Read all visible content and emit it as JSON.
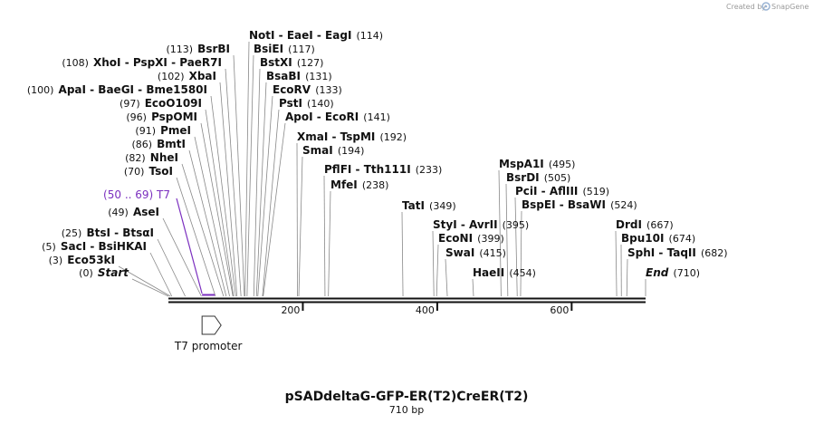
{
  "credit": {
    "created_by": "Created by",
    "brand": "SnapGene",
    "logo_icon": "snapgene-logo-icon",
    "logo_color": "#9ab4d4"
  },
  "map": {
    "title": "pSADdeltaG-GFP-ER(T2)CreER(T2)",
    "length_label": "710 bp",
    "length_bp": 710,
    "ticks": [
      {
        "bp": 200,
        "label": "200"
      },
      {
        "bp": 400,
        "label": "400"
      },
      {
        "bp": 600,
        "label": "600"
      }
    ],
    "feature_color": "#7b2fbf",
    "features": [
      {
        "label": "(50 .. 69)  T7",
        "start": 50,
        "end": 69
      }
    ],
    "annotation": {
      "label": "T7 promoter",
      "start": 50,
      "end": 69
    }
  },
  "sites": [
    {
      "pos": 0,
      "pos_label": "(0)",
      "name": "Start",
      "italic": true
    },
    {
      "pos": 3,
      "pos_label": "(3)",
      "name": "Eco53kI"
    },
    {
      "pos": 5,
      "pos_label": "(5)",
      "name": "SacI  - BsiHKAI"
    },
    {
      "pos": 25,
      "pos_label": "(25)",
      "name": "BtsI  - BtsαI"
    },
    {
      "pos": 49,
      "pos_label": "(49)",
      "name": "AseI"
    },
    {
      "pos": 70,
      "pos_label": "(70)",
      "name": "TsoI"
    },
    {
      "pos": 82,
      "pos_label": "(82)",
      "name": "NheI"
    },
    {
      "pos": 86,
      "pos_label": "(86)",
      "name": "BmtI"
    },
    {
      "pos": 91,
      "pos_label": "(91)",
      "name": "PmeI"
    },
    {
      "pos": 96,
      "pos_label": "(96)",
      "name": "PspOMI"
    },
    {
      "pos": 97,
      "pos_label": "(97)",
      "name": "EcoO109I"
    },
    {
      "pos": 100,
      "pos_label": "(100)",
      "name": "ApaI  - BaeGI  - Bme1580I"
    },
    {
      "pos": 102,
      "pos_label": "(102)",
      "name": "XbaI"
    },
    {
      "pos": 108,
      "pos_label": "(108)",
      "name": "XhoI  - PspXI  - PaeR7I"
    },
    {
      "pos": 113,
      "pos_label": "(113)",
      "name": "BsrBI"
    },
    {
      "pos": 114,
      "pos_label": "(114)",
      "name": "NotI  - EaeI  - EagI"
    },
    {
      "pos": 117,
      "pos_label": "(117)",
      "name": "BsiEI"
    },
    {
      "pos": 127,
      "pos_label": "(127)",
      "name": "BstXI"
    },
    {
      "pos": 131,
      "pos_label": "(131)",
      "name": "BsaBI"
    },
    {
      "pos": 133,
      "pos_label": "(133)",
      "name": "EcoRV"
    },
    {
      "pos": 140,
      "pos_label": "(140)",
      "name": "PstI"
    },
    {
      "pos": 141,
      "pos_label": "(141)",
      "name": "ApoI  - EcoRI"
    },
    {
      "pos": 192,
      "pos_label": "(192)",
      "name": "XmaI  - TspMI"
    },
    {
      "pos": 194,
      "pos_label": "(194)",
      "name": "SmaI"
    },
    {
      "pos": 233,
      "pos_label": "(233)",
      "name": "PflFI  - Tth111I"
    },
    {
      "pos": 238,
      "pos_label": "(238)",
      "name": "MfeI"
    },
    {
      "pos": 349,
      "pos_label": "(349)",
      "name": "TatI"
    },
    {
      "pos": 395,
      "pos_label": "(395)",
      "name": "StyI  - AvrII"
    },
    {
      "pos": 399,
      "pos_label": "(399)",
      "name": "EcoNI"
    },
    {
      "pos": 415,
      "pos_label": "(415)",
      "name": "SwaI"
    },
    {
      "pos": 454,
      "pos_label": "(454)",
      "name": "HaeII"
    },
    {
      "pos": 495,
      "pos_label": "(495)",
      "name": "MspA1I"
    },
    {
      "pos": 505,
      "pos_label": "(505)",
      "name": "BsrDI"
    },
    {
      "pos": 519,
      "pos_label": "(519)",
      "name": "PciI  - AflIII"
    },
    {
      "pos": 524,
      "pos_label": "(524)",
      "name": "BspEI  - BsaWI"
    },
    {
      "pos": 667,
      "pos_label": "(667)",
      "name": "DrdI"
    },
    {
      "pos": 674,
      "pos_label": "(674)",
      "name": "Bpu10I"
    },
    {
      "pos": 682,
      "pos_label": "(682)",
      "name": "SphI  - TaqII"
    },
    {
      "pos": 710,
      "pos_label": "(710)",
      "name": "End",
      "italic": true
    }
  ]
}
